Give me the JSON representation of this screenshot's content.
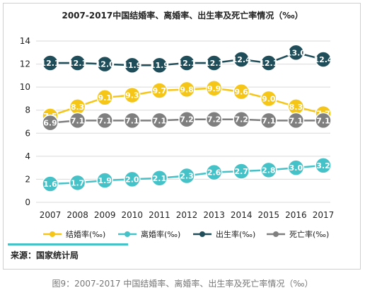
{
  "title": "2007-2017中国结婚率、离婚率、出生率及死亡率情况（‰）",
  "source_text": "来源：国家统计局",
  "caption": "图9：2007-2017 中国结婚率、离婚率、出生率及死亡率情况（‰）",
  "chart_data": {
    "type": "line",
    "title": "2007-2017中国结婚率、离婚率、出生率及死亡率情况（‰）",
    "x": [
      "2007",
      "2008",
      "2009",
      "2010",
      "2011",
      "2012",
      "2013",
      "2014",
      "2015",
      "2016",
      "2017"
    ],
    "ylim": [
      0,
      14
    ],
    "yticks": [
      0,
      2,
      4,
      6,
      8,
      10,
      12,
      14
    ],
    "grid": true,
    "legend_placement": "bottom",
    "series": [
      {
        "name": "结婚率(‰)",
        "color": "#f5c518",
        "values": [
          7.5,
          8.3,
          9.1,
          9.3,
          9.7,
          9.8,
          9.9,
          9.6,
          9.0,
          8.3,
          7.7
        ],
        "labels": [
          "7.5",
          "8.3",
          "9.1",
          "9.3",
          "9.7",
          "9.8",
          "9.9",
          "9.6",
          "9.0",
          "8.3",
          "7.7"
        ]
      },
      {
        "name": "离婚率(‰)",
        "color": "#45c2c7",
        "values": [
          1.6,
          1.7,
          1.9,
          2.0,
          2.1,
          2.3,
          2.6,
          2.7,
          2.8,
          3.0,
          3.2
        ],
        "labels": [
          "1.6",
          "1.7",
          "1.9",
          "2.0",
          "2.1",
          "2.3",
          "2.6",
          "2.7",
          "2.8",
          "3.0",
          "3.2"
        ]
      },
      {
        "name": "出生率(‰)",
        "color": "#1f4e5a",
        "values": [
          12.1,
          12.1,
          12.0,
          11.9,
          11.9,
          12.1,
          12.1,
          12.4,
          12.1,
          13.0,
          12.4
        ],
        "labels": [
          "12.1",
          "12.1",
          "12.0",
          "11.9",
          "11.9",
          "12.1",
          "12.1",
          "12.4",
          "12.1",
          "13.0",
          "12.4"
        ]
      },
      {
        "name": "死亡率(‰)",
        "color": "#7f7f7f",
        "values": [
          6.9,
          7.1,
          7.1,
          7.1,
          7.1,
          7.2,
          7.2,
          7.2,
          7.1,
          7.1,
          7.1
        ],
        "labels": [
          "6.9",
          "7.1",
          "7.1",
          "7.1",
          "7.1",
          "7.2",
          "7.2",
          "7.2",
          "7.1",
          "7.1",
          "7.1"
        ]
      }
    ]
  }
}
